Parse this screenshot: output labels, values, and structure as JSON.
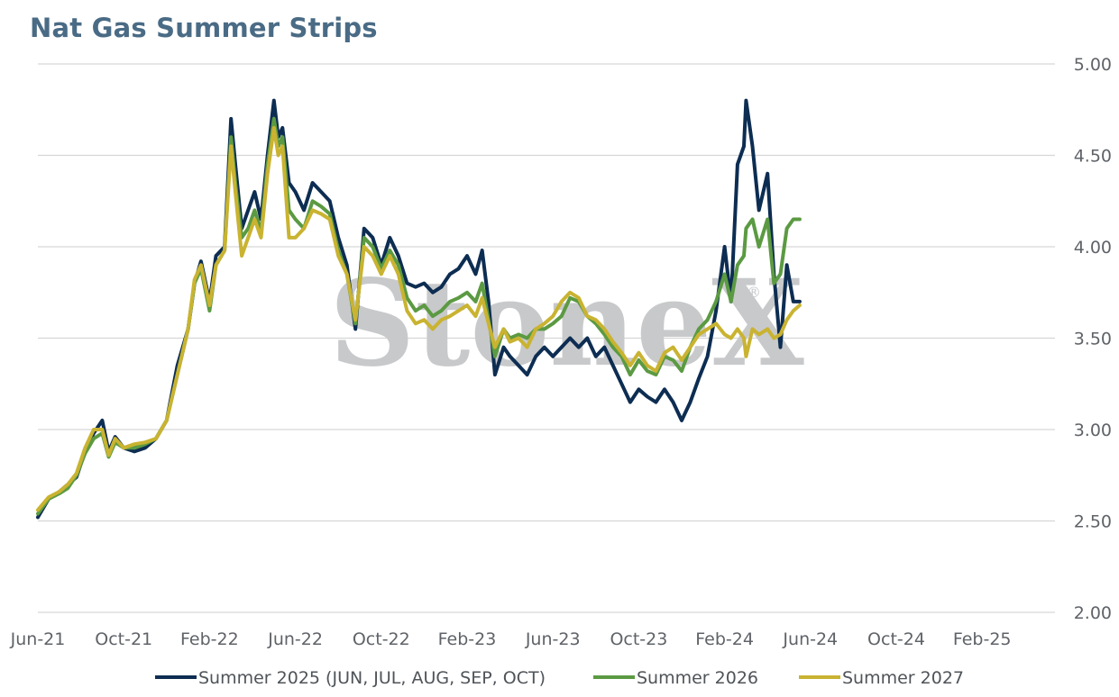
{
  "title": "Nat Gas Summer Strips",
  "watermark": "StoneX",
  "watermark_mark": "®",
  "chart_data": {
    "type": "line",
    "title": "Nat Gas Summer Strips",
    "x_labels": [
      "Jun-21",
      "Oct-21",
      "Feb-22",
      "Jun-22",
      "Oct-22",
      "Feb-23",
      "Jun-23",
      "Oct-23",
      "Feb-24",
      "Jun-24",
      "Oct-24",
      "Feb-25"
    ],
    "x_range": [
      "Jun-21",
      "Jun-25"
    ],
    "y_ticks": [
      "5.00",
      "4.50",
      "4.00",
      "3.50",
      "3.00",
      "2.50",
      "2.00"
    ],
    "ylim": [
      2.0,
      5.0
    ],
    "y_axis_side": "right",
    "grid": true,
    "legend_position": "bottom",
    "series": [
      {
        "name": "Summer 2025 (JUN, JUL, AUG, SEP, OCT)",
        "color": "#0d2d52",
        "points": [
          [
            0,
            2.52
          ],
          [
            0.5,
            2.62
          ],
          [
            1,
            2.66
          ],
          [
            1.4,
            2.7
          ],
          [
            1.8,
            2.74
          ],
          [
            2.2,
            2.88
          ],
          [
            2.6,
            2.98
          ],
          [
            3,
            3.05
          ],
          [
            3.3,
            2.88
          ],
          [
            3.6,
            2.96
          ],
          [
            4,
            2.9
          ],
          [
            4.5,
            2.88
          ],
          [
            5,
            2.9
          ],
          [
            5.5,
            2.95
          ],
          [
            6,
            3.05
          ],
          [
            6.5,
            3.35
          ],
          [
            7,
            3.55
          ],
          [
            7.3,
            3.8
          ],
          [
            7.6,
            3.92
          ],
          [
            8,
            3.7
          ],
          [
            8.3,
            3.95
          ],
          [
            8.7,
            4.0
          ],
          [
            9,
            4.7
          ],
          [
            9.2,
            4.45
          ],
          [
            9.5,
            4.1
          ],
          [
            9.8,
            4.2
          ],
          [
            10.1,
            4.3
          ],
          [
            10.4,
            4.15
          ],
          [
            10.7,
            4.5
          ],
          [
            11,
            4.8
          ],
          [
            11.2,
            4.6
          ],
          [
            11.4,
            4.65
          ],
          [
            11.7,
            4.35
          ],
          [
            12,
            4.3
          ],
          [
            12.4,
            4.2
          ],
          [
            12.8,
            4.35
          ],
          [
            13.2,
            4.3
          ],
          [
            13.6,
            4.25
          ],
          [
            14,
            4.05
          ],
          [
            14.4,
            3.9
          ],
          [
            14.8,
            3.55
          ],
          [
            15.2,
            4.1
          ],
          [
            15.6,
            4.05
          ],
          [
            16,
            3.9
          ],
          [
            16.4,
            4.05
          ],
          [
            16.8,
            3.95
          ],
          [
            17.2,
            3.8
          ],
          [
            17.6,
            3.78
          ],
          [
            18,
            3.8
          ],
          [
            18.4,
            3.75
          ],
          [
            18.8,
            3.78
          ],
          [
            19.2,
            3.85
          ],
          [
            19.6,
            3.88
          ],
          [
            20,
            3.95
          ],
          [
            20.4,
            3.85
          ],
          [
            20.7,
            3.98
          ],
          [
            21,
            3.7
          ],
          [
            21.3,
            3.3
          ],
          [
            21.7,
            3.45
          ],
          [
            22,
            3.4
          ],
          [
            22.4,
            3.35
          ],
          [
            22.8,
            3.3
          ],
          [
            23.2,
            3.4
          ],
          [
            23.6,
            3.45
          ],
          [
            24,
            3.4
          ],
          [
            24.4,
            3.45
          ],
          [
            24.8,
            3.5
          ],
          [
            25.2,
            3.45
          ],
          [
            25.6,
            3.5
          ],
          [
            26,
            3.4
          ],
          [
            26.4,
            3.45
          ],
          [
            26.8,
            3.35
          ],
          [
            27.2,
            3.25
          ],
          [
            27.6,
            3.15
          ],
          [
            28,
            3.22
          ],
          [
            28.4,
            3.18
          ],
          [
            28.8,
            3.15
          ],
          [
            29.2,
            3.22
          ],
          [
            29.6,
            3.15
          ],
          [
            30,
            3.05
          ],
          [
            30.4,
            3.15
          ],
          [
            30.8,
            3.28
          ],
          [
            31.2,
            3.4
          ],
          [
            31.6,
            3.65
          ],
          [
            32,
            4.0
          ],
          [
            32.3,
            3.7
          ],
          [
            32.6,
            4.45
          ],
          [
            32.9,
            4.55
          ],
          [
            33,
            4.8
          ],
          [
            33.3,
            4.55
          ],
          [
            33.6,
            4.2
          ],
          [
            34,
            4.4
          ],
          [
            34.3,
            3.85
          ],
          [
            34.6,
            3.45
          ],
          [
            34.9,
            3.9
          ],
          [
            35.2,
            3.7
          ],
          [
            35.5,
            3.7
          ]
        ]
      },
      {
        "name": "Summer 2026",
        "color": "#5b9a42",
        "points": [
          [
            0,
            2.54
          ],
          [
            0.5,
            2.62
          ],
          [
            1,
            2.65
          ],
          [
            1.4,
            2.68
          ],
          [
            1.8,
            2.75
          ],
          [
            2.2,
            2.87
          ],
          [
            2.6,
            2.95
          ],
          [
            3,
            2.98
          ],
          [
            3.3,
            2.85
          ],
          [
            3.6,
            2.93
          ],
          [
            4,
            2.9
          ],
          [
            4.5,
            2.9
          ],
          [
            5,
            2.92
          ],
          [
            5.5,
            2.95
          ],
          [
            6,
            3.05
          ],
          [
            6.5,
            3.3
          ],
          [
            7,
            3.55
          ],
          [
            7.3,
            3.8
          ],
          [
            7.6,
            3.88
          ],
          [
            8,
            3.65
          ],
          [
            8.3,
            3.9
          ],
          [
            8.7,
            3.98
          ],
          [
            9,
            4.6
          ],
          [
            9.2,
            4.35
          ],
          [
            9.5,
            4.05
          ],
          [
            9.8,
            4.1
          ],
          [
            10.1,
            4.2
          ],
          [
            10.4,
            4.08
          ],
          [
            10.7,
            4.45
          ],
          [
            11,
            4.7
          ],
          [
            11.2,
            4.55
          ],
          [
            11.4,
            4.6
          ],
          [
            11.7,
            4.2
          ],
          [
            12,
            4.15
          ],
          [
            12.4,
            4.1
          ],
          [
            12.8,
            4.25
          ],
          [
            13.2,
            4.22
          ],
          [
            13.6,
            4.18
          ],
          [
            14,
            3.98
          ],
          [
            14.4,
            3.85
          ],
          [
            14.8,
            3.58
          ],
          [
            15.2,
            4.05
          ],
          [
            15.6,
            4.0
          ],
          [
            16,
            3.88
          ],
          [
            16.4,
            3.98
          ],
          [
            16.8,
            3.9
          ],
          [
            17.2,
            3.72
          ],
          [
            17.6,
            3.65
          ],
          [
            18,
            3.68
          ],
          [
            18.4,
            3.62
          ],
          [
            18.8,
            3.65
          ],
          [
            19.2,
            3.7
          ],
          [
            19.6,
            3.72
          ],
          [
            20,
            3.75
          ],
          [
            20.4,
            3.7
          ],
          [
            20.7,
            3.8
          ],
          [
            21,
            3.6
          ],
          [
            21.3,
            3.4
          ],
          [
            21.7,
            3.55
          ],
          [
            22,
            3.5
          ],
          [
            22.4,
            3.52
          ],
          [
            22.8,
            3.5
          ],
          [
            23.2,
            3.55
          ],
          [
            23.6,
            3.55
          ],
          [
            24,
            3.58
          ],
          [
            24.4,
            3.62
          ],
          [
            24.8,
            3.72
          ],
          [
            25.2,
            3.7
          ],
          [
            25.6,
            3.62
          ],
          [
            26,
            3.58
          ],
          [
            26.4,
            3.52
          ],
          [
            26.8,
            3.45
          ],
          [
            27.2,
            3.4
          ],
          [
            27.6,
            3.3
          ],
          [
            28,
            3.38
          ],
          [
            28.4,
            3.32
          ],
          [
            28.8,
            3.3
          ],
          [
            29.2,
            3.4
          ],
          [
            29.6,
            3.38
          ],
          [
            30,
            3.32
          ],
          [
            30.4,
            3.45
          ],
          [
            30.8,
            3.55
          ],
          [
            31.2,
            3.6
          ],
          [
            31.6,
            3.7
          ],
          [
            32,
            3.85
          ],
          [
            32.3,
            3.7
          ],
          [
            32.6,
            3.9
          ],
          [
            32.9,
            3.95
          ],
          [
            33,
            4.1
          ],
          [
            33.3,
            4.15
          ],
          [
            33.6,
            4.0
          ],
          [
            34,
            4.15
          ],
          [
            34.3,
            3.8
          ],
          [
            34.6,
            3.85
          ],
          [
            34.9,
            4.1
          ],
          [
            35.2,
            4.15
          ],
          [
            35.5,
            4.15
          ]
        ]
      },
      {
        "name": "Summer 2027",
        "color": "#c9b331",
        "points": [
          [
            0,
            2.56
          ],
          [
            0.5,
            2.63
          ],
          [
            1,
            2.66
          ],
          [
            1.4,
            2.7
          ],
          [
            1.8,
            2.76
          ],
          [
            2.2,
            2.9
          ],
          [
            2.6,
            3.0
          ],
          [
            3,
            3.0
          ],
          [
            3.3,
            2.86
          ],
          [
            3.6,
            2.95
          ],
          [
            4,
            2.9
          ],
          [
            4.5,
            2.92
          ],
          [
            5,
            2.93
          ],
          [
            5.5,
            2.95
          ],
          [
            6,
            3.05
          ],
          [
            6.5,
            3.3
          ],
          [
            7,
            3.55
          ],
          [
            7.3,
            3.82
          ],
          [
            7.6,
            3.9
          ],
          [
            8,
            3.68
          ],
          [
            8.3,
            3.9
          ],
          [
            8.7,
            3.98
          ],
          [
            9,
            4.55
          ],
          [
            9.2,
            4.3
          ],
          [
            9.5,
            3.95
          ],
          [
            9.8,
            4.05
          ],
          [
            10.1,
            4.15
          ],
          [
            10.4,
            4.05
          ],
          [
            10.7,
            4.4
          ],
          [
            11,
            4.65
          ],
          [
            11.2,
            4.5
          ],
          [
            11.4,
            4.55
          ],
          [
            11.7,
            4.05
          ],
          [
            12,
            4.05
          ],
          [
            12.4,
            4.1
          ],
          [
            12.8,
            4.2
          ],
          [
            13.2,
            4.18
          ],
          [
            13.6,
            4.15
          ],
          [
            14,
            3.95
          ],
          [
            14.4,
            3.85
          ],
          [
            14.8,
            3.6
          ],
          [
            15.2,
            4.0
          ],
          [
            15.6,
            3.95
          ],
          [
            16,
            3.85
          ],
          [
            16.4,
            3.95
          ],
          [
            16.8,
            3.85
          ],
          [
            17.2,
            3.65
          ],
          [
            17.6,
            3.58
          ],
          [
            18,
            3.6
          ],
          [
            18.4,
            3.55
          ],
          [
            18.8,
            3.6
          ],
          [
            19.2,
            3.62
          ],
          [
            19.6,
            3.65
          ],
          [
            20,
            3.68
          ],
          [
            20.4,
            3.62
          ],
          [
            20.7,
            3.72
          ],
          [
            21,
            3.58
          ],
          [
            21.3,
            3.45
          ],
          [
            21.7,
            3.55
          ],
          [
            22,
            3.48
          ],
          [
            22.4,
            3.5
          ],
          [
            22.8,
            3.45
          ],
          [
            23.2,
            3.55
          ],
          [
            23.6,
            3.58
          ],
          [
            24,
            3.62
          ],
          [
            24.4,
            3.7
          ],
          [
            24.8,
            3.75
          ],
          [
            25.2,
            3.72
          ],
          [
            25.6,
            3.62
          ],
          [
            26,
            3.6
          ],
          [
            26.4,
            3.55
          ],
          [
            26.8,
            3.48
          ],
          [
            27.2,
            3.42
          ],
          [
            27.6,
            3.35
          ],
          [
            28,
            3.42
          ],
          [
            28.4,
            3.35
          ],
          [
            28.8,
            3.32
          ],
          [
            29.2,
            3.42
          ],
          [
            29.6,
            3.45
          ],
          [
            30,
            3.38
          ],
          [
            30.4,
            3.45
          ],
          [
            30.8,
            3.52
          ],
          [
            31.2,
            3.55
          ],
          [
            31.6,
            3.58
          ],
          [
            32,
            3.52
          ],
          [
            32.3,
            3.5
          ],
          [
            32.6,
            3.55
          ],
          [
            32.9,
            3.5
          ],
          [
            33,
            3.4
          ],
          [
            33.3,
            3.55
          ],
          [
            33.6,
            3.52
          ],
          [
            34,
            3.55
          ],
          [
            34.3,
            3.5
          ],
          [
            34.6,
            3.52
          ],
          [
            34.9,
            3.6
          ],
          [
            35.2,
            3.65
          ],
          [
            35.5,
            3.68
          ]
        ]
      }
    ]
  }
}
